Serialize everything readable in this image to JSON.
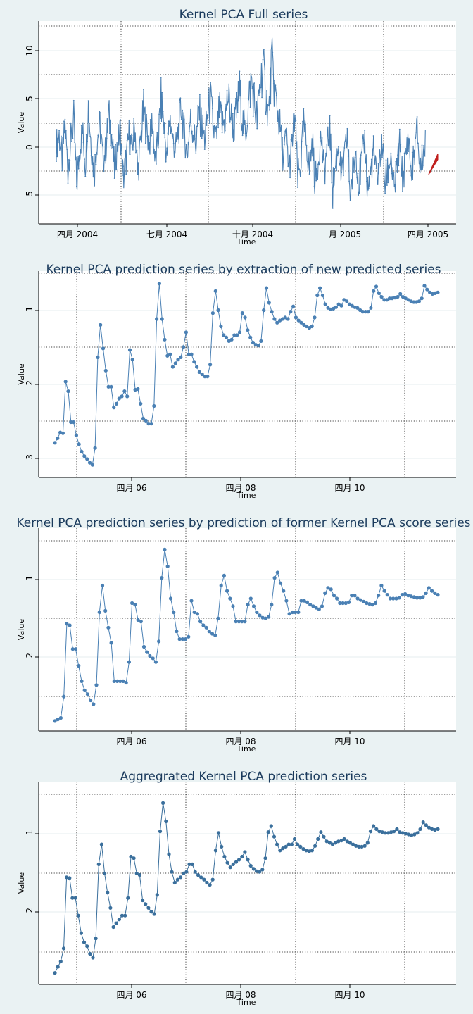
{
  "colors": {
    "background": "#eaf2f3",
    "series": "#4a80b4",
    "series_dark": "#3a6f9c",
    "forecast": "#c0201e"
  },
  "chart_data": [
    {
      "type": "line",
      "title": "Kernel PCA Full series",
      "xlabel": "Time",
      "ylabel": "Value",
      "yticks": [
        "-5",
        "0",
        "5",
        "10"
      ],
      "xticks": [
        "四月 2004",
        "七月 2004",
        "十月 2004",
        "一月 2005",
        "四月 2005"
      ],
      "ylim": [
        -7.5,
        13
      ],
      "x_range": [
        "2004-03",
        "2005-04"
      ],
      "series": [
        {
          "values": [
            0.5,
            1.5,
            -1.0,
            2.5,
            -2.0,
            1.0,
            3.0,
            -3.5,
            0.0,
            2.0,
            -1.5,
            4.5,
            0.5,
            -2.5,
            1.0,
            2.5,
            -1.0,
            0.0,
            3.5,
            1.5,
            -2.0,
            0.5,
            2.0,
            -3.0,
            -1.0,
            1.5,
            0.0,
            2.5,
            -2.5,
            1.0,
            4.0,
            2.0,
            0.5,
            3.0,
            -1.5,
            1.0,
            5.0,
            2.5,
            -1.0,
            3.5,
            1.0,
            0.0,
            2.0,
            4.5,
            1.5,
            -0.5,
            3.0,
            2.0,
            0.5,
            4.0,
            2.5,
            1.0,
            3.5,
            5.0,
            2.0,
            1.0,
            4.0,
            2.5,
            3.0,
            5.5,
            3.5,
            2.0,
            4.0,
            6.0,
            3.0,
            1.5,
            4.5,
            7.0,
            5.0,
            3.0,
            6.5,
            8.5,
            5.5,
            3.5,
            9.0,
            6.0,
            4.0,
            2.0,
            -1.0,
            1.5,
            -2.0,
            0.5,
            3.5,
            -3.0,
            -1.5,
            2.5,
            0.5,
            -2.0,
            1.0,
            -3.5,
            -1.0,
            1.5,
            -2.5,
            0.0,
            2.0,
            -4.0,
            -1.5,
            0.5,
            -3.0,
            -1.0,
            1.5,
            -4.5,
            -2.0,
            0.0,
            -3.5,
            -1.0,
            1.0,
            -4.0,
            -2.5,
            0.0,
            -3.0,
            -1.5,
            0.5,
            -3.5,
            -2.0,
            -0.5,
            -4.5,
            -2.0,
            0.5,
            -3.0,
            -1.0,
            1.5,
            -2.5,
            -0.5,
            2.0,
            -2.0,
            -0.5,
            1.0
          ]
        },
        {
          "name": "",
          "values": [
            -2.5,
            -0.7
          ]
        }
      ]
    },
    {
      "type": "line",
      "title": "Kernel PCA prediction series by extraction of new predicted series",
      "xlabel": "Time",
      "ylabel": "Value",
      "yticks": [
        "-3",
        "-2",
        "-1"
      ],
      "xticks": [
        "四月 06",
        "四月 08",
        "四月 10"
      ],
      "ylim": [
        -3.25,
        -0.45
      ],
      "x_range": [
        2005.2,
        2011.2
      ],
      "series": [
        {
          "values": [
            -2.78,
            -2.72,
            -2.64,
            -2.65,
            -1.95,
            -2.08,
            -2.5,
            -2.5,
            -2.68,
            -2.8,
            -2.9,
            -2.96,
            -3.0,
            -3.05,
            -3.08,
            -2.85,
            -1.62,
            -1.18,
            -1.5,
            -1.8,
            -2.02,
            -2.02,
            -2.3,
            -2.25,
            -2.18,
            -2.15,
            -2.08,
            -2.15,
            -1.52,
            -1.65,
            -2.06,
            -2.05,
            -2.25,
            -2.45,
            -2.48,
            -2.52,
            -2.52,
            -2.28,
            -1.1,
            -0.62,
            -1.1,
            -1.38,
            -1.6,
            -1.58,
            -1.75,
            -1.7,
            -1.65,
            -1.62,
            -1.48,
            -1.28,
            -1.58,
            -1.58,
            -1.68,
            -1.75,
            -1.82,
            -1.85,
            -1.88,
            -1.88,
            -1.72,
            -1.02,
            -0.72,
            -0.98,
            -1.2,
            -1.32,
            -1.35,
            -1.4,
            -1.38,
            -1.32,
            -1.32,
            -1.28,
            -1.02,
            -1.08,
            -1.25,
            -1.35,
            -1.42,
            -1.45,
            -1.46,
            -1.4,
            -0.98,
            -0.68,
            -0.88,
            -1.0,
            -1.1,
            -1.15,
            -1.12,
            -1.1,
            -1.08,
            -1.1,
            -1.0,
            -0.93,
            -1.08,
            -1.12,
            -1.15,
            -1.18,
            -1.2,
            -1.22,
            -1.2,
            -1.08,
            -0.78,
            -0.68,
            -0.78,
            -0.9,
            -0.95,
            -0.97,
            -0.96,
            -0.94,
            -0.9,
            -0.92,
            -0.84,
            -0.86,
            -0.9,
            -0.92,
            -0.94,
            -0.95,
            -0.98,
            -1.0,
            -1.0,
            -1.0,
            -0.95,
            -0.72,
            -0.66,
            -0.75,
            -0.8,
            -0.84,
            -0.84,
            -0.82,
            -0.82,
            -0.81,
            -0.8,
            -0.76,
            -0.8,
            -0.82,
            -0.84,
            -0.86,
            -0.87,
            -0.87,
            -0.86,
            -0.82,
            -0.65,
            -0.7,
            -0.74,
            -0.76,
            -0.75,
            -0.74
          ]
        }
      ]
    },
    {
      "type": "line",
      "title": "Kernel PCA prediction series by prediction of former Kernel PCA score series",
      "xlabel": "Time",
      "ylabel": "Value",
      "yticks": [
        "-2",
        "-1"
      ],
      "xticks": [
        "四月 06",
        "四月 08",
        "四月 10"
      ],
      "ylim": [
        -2.95,
        -0.3
      ],
      "x_range": [
        2005.2,
        2011.2
      ],
      "series": [
        {
          "values": [
            -2.82,
            -2.8,
            -2.78,
            -2.5,
            -1.55,
            -1.57,
            -1.88,
            -1.88,
            -2.1,
            -2.3,
            -2.42,
            -2.47,
            -2.55,
            -2.6,
            -2.35,
            -1.4,
            -1.05,
            -1.38,
            -1.6,
            -1.8,
            -2.3,
            -2.3,
            -2.3,
            -2.3,
            -2.32,
            -2.05,
            -1.28,
            -1.3,
            -1.5,
            -1.52,
            -1.85,
            -1.92,
            -1.97,
            -2.0,
            -2.05,
            -1.78,
            -0.95,
            -0.58,
            -0.8,
            -1.22,
            -1.4,
            -1.65,
            -1.75,
            -1.75,
            -1.75,
            -1.72,
            -1.25,
            -1.4,
            -1.42,
            -1.52,
            -1.57,
            -1.6,
            -1.65,
            -1.68,
            -1.7,
            -1.48,
            -1.05,
            -0.92,
            -1.12,
            -1.22,
            -1.32,
            -1.52,
            -1.52,
            -1.52,
            -1.52,
            -1.3,
            -1.22,
            -1.32,
            -1.4,
            -1.44,
            -1.47,
            -1.48,
            -1.46,
            -1.3,
            -0.95,
            -0.88,
            -1.02,
            -1.12,
            -1.25,
            -1.42,
            -1.4,
            -1.4,
            -1.4,
            -1.25,
            -1.25,
            -1.27,
            -1.3,
            -1.32,
            -1.34,
            -1.36,
            -1.32,
            -1.15,
            -1.08,
            -1.1,
            -1.18,
            -1.22,
            -1.28,
            -1.28,
            -1.28,
            -1.27,
            -1.18,
            -1.18,
            -1.22,
            -1.24,
            -1.26,
            -1.28,
            -1.29,
            -1.3,
            -1.28,
            -1.18,
            -1.05,
            -1.12,
            -1.17,
            -1.22,
            -1.22,
            -1.22,
            -1.21,
            -1.17,
            -1.16,
            -1.18,
            -1.19,
            -1.2,
            -1.21,
            -1.21,
            -1.2,
            -1.15,
            -1.08,
            -1.12,
            -1.15,
            -1.17
          ]
        }
      ]
    },
    {
      "type": "line",
      "title": "Aggregrated Kernel PCA prediction series",
      "xlabel": "Time",
      "ylabel": "Value",
      "yticks": [
        "-2",
        "-1"
      ],
      "xticks": [
        "四月 06",
        "四月 08",
        "四月 10"
      ],
      "ylim": [
        -2.95,
        -0.3
      ],
      "x_range": [
        2005.2,
        2011.2
      ],
      "series": [
        {
          "values": [
            -2.8,
            -2.72,
            -2.65,
            -2.48,
            -1.55,
            -1.56,
            -1.82,
            -1.82,
            -2.05,
            -2.28,
            -2.4,
            -2.45,
            -2.55,
            -2.6,
            -2.35,
            -1.38,
            -1.12,
            -1.5,
            -1.75,
            -1.95,
            -2.2,
            -2.15,
            -2.1,
            -2.05,
            -2.05,
            -1.82,
            -1.28,
            -1.3,
            -1.5,
            -1.52,
            -1.85,
            -1.9,
            -1.95,
            -2.0,
            -2.03,
            -1.78,
            -0.95,
            -0.58,
            -0.82,
            -1.25,
            -1.48,
            -1.62,
            -1.58,
            -1.55,
            -1.5,
            -1.48,
            -1.38,
            -1.38,
            -1.48,
            -1.52,
            -1.55,
            -1.58,
            -1.62,
            -1.65,
            -1.58,
            -1.2,
            -0.97,
            -1.15,
            -1.28,
            -1.36,
            -1.42,
            -1.38,
            -1.35,
            -1.32,
            -1.28,
            -1.22,
            -1.32,
            -1.4,
            -1.44,
            -1.47,
            -1.48,
            -1.45,
            -1.3,
            -0.96,
            -0.88,
            -1.02,
            -1.12,
            -1.2,
            -1.17,
            -1.15,
            -1.12,
            -1.12,
            -1.05,
            -1.12,
            -1.15,
            -1.18,
            -1.2,
            -1.21,
            -1.2,
            -1.14,
            -1.05,
            -0.96,
            -1.02,
            -1.08,
            -1.1,
            -1.12,
            -1.1,
            -1.08,
            -1.07,
            -1.05,
            -1.08,
            -1.1,
            -1.12,
            -1.14,
            -1.15,
            -1.15,
            -1.14,
            -1.1,
            -0.95,
            -0.88,
            -0.92,
            -0.95,
            -0.96,
            -0.97,
            -0.97,
            -0.96,
            -0.95,
            -0.92,
            -0.96,
            -0.97,
            -0.98,
            -0.99,
            -1.0,
            -0.99,
            -0.97,
            -0.92,
            -0.83,
            -0.87,
            -0.9,
            -0.92,
            -0.93,
            -0.92
          ]
        }
      ]
    }
  ]
}
